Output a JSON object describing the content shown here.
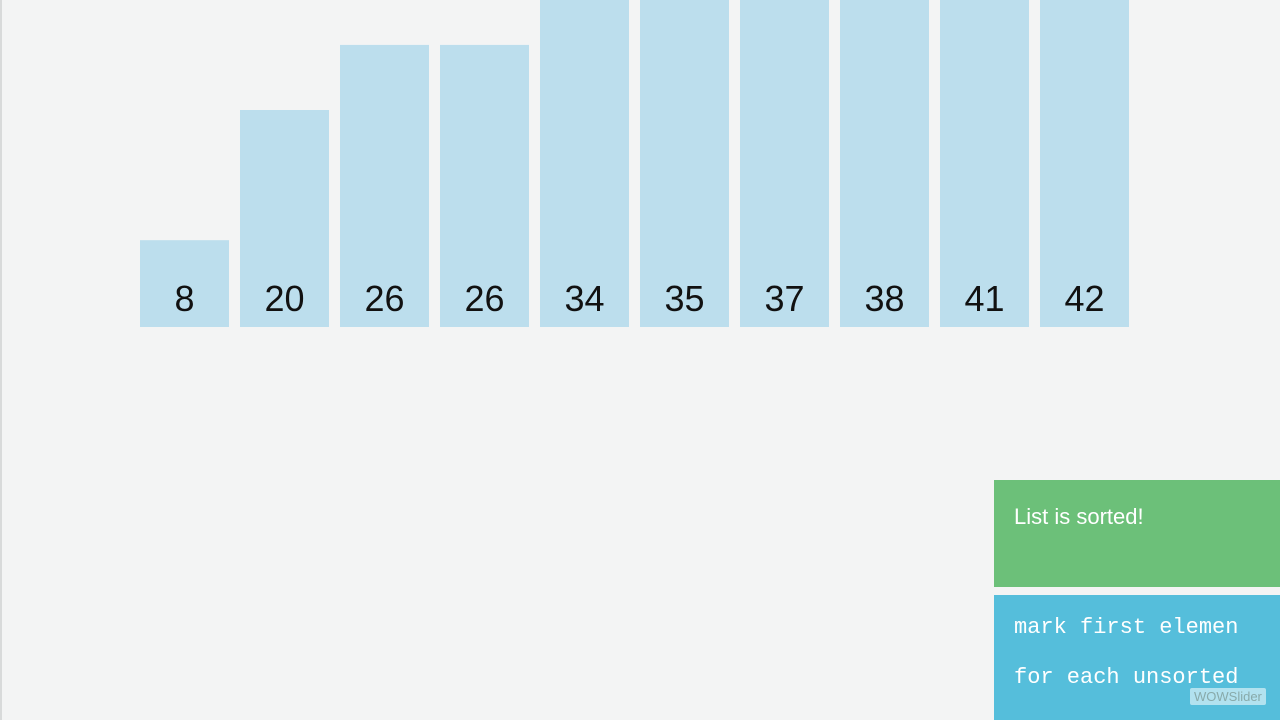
{
  "bars": [
    8,
    20,
    26,
    26,
    34,
    35,
    37,
    38,
    41,
    42
  ],
  "status": "List is sorted!",
  "pseudocode": [
    "mark first elemen",
    "for each unsorted"
  ],
  "watermark": "WOWSlider"
}
